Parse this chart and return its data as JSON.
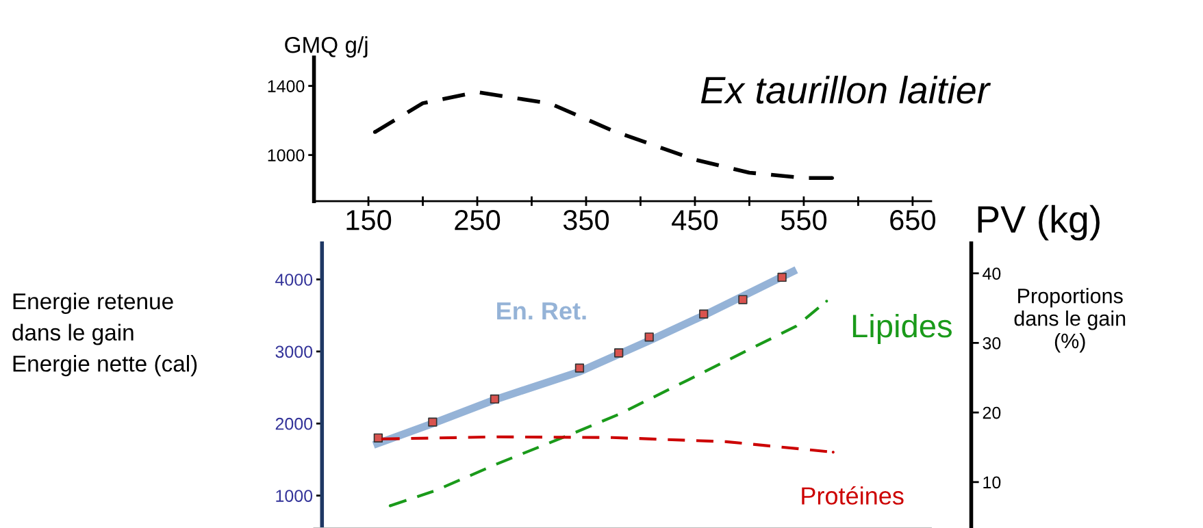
{
  "chart_data": [
    {
      "type": "line",
      "xlabel": "PV (kg)",
      "ylabel": "GMQ g/j",
      "annotations": [
        "Ex taurillon laitier"
      ],
      "series": [
        {
          "color": "#000000",
          "line_style": "dashed",
          "x": [
            156,
            200,
            250,
            317,
            374,
            450,
            500,
            550,
            576
          ],
          "values": [
            1133,
            1300,
            1364,
            1298,
            1142,
            973,
            898,
            867,
            867
          ]
        }
      ],
      "xlim": [
        100,
        667
      ],
      "xticks": [
        150,
        {
          "value": 200,
          "label": null
        },
        250,
        {
          "value": 300,
          "label": null
        },
        350,
        {
          "value": 400,
          "label": null
        },
        450,
        {
          "value": 500,
          "label": null
        },
        550,
        {
          "value": 600,
          "label": null
        },
        650
      ],
      "ylim": [
        733,
        1564
      ],
      "yticks": [
        1000,
        1400
      ],
      "grid": false,
      "legend": false
    },
    {
      "type": "line",
      "ylabel": "Energie retenue\ndans le gain\nEnergie nette (cal)",
      "y2label": "Proportions\ndans le gain\n(%)",
      "series": [
        {
          "name": "En. Ret.",
          "color": "#95b3d7",
          "x": [
            158,
            209,
            266,
            344,
            408,
            458,
            540
          ],
          "values": [
            1720,
            2000,
            2330,
            2720,
            3150,
            3500,
            4110
          ]
        },
        {
          "type": "scatter",
          "color": "#d9534f",
          "marker": "square",
          "x": [
            159,
            209,
            266,
            344,
            380,
            408,
            458,
            494,
            530
          ],
          "values": [
            1800,
            2020,
            2340,
            2770,
            2980,
            3200,
            3520,
            3720,
            4030
          ]
        },
        {
          "name": "Lipides",
          "color": "#1a9a1a",
          "axis": "y2",
          "line_style": "dashed",
          "x": [
            170,
            212,
            268,
            338,
            381,
            444,
            494,
            543,
            571
          ],
          "values": [
            6.6,
            8.8,
            12.6,
            17.0,
            19.8,
            24.7,
            28.6,
            32.4,
            36.0
          ]
        },
        {
          "name": "Protéines",
          "color": "#cc0000",
          "axis": "y2",
          "line_style": "dashed",
          "x": [
            163,
            268,
            374,
            479,
            577
          ],
          "values": [
            16.2,
            16.5,
            16.4,
            15.8,
            14.3
          ]
        }
      ],
      "xlim": [
        100,
        667
      ],
      "ylim": [
        550,
        4500
      ],
      "yticks": [
        1000,
        2000,
        3000,
        4000
      ],
      "y2lim": [
        3.4,
        44.3
      ],
      "y2ticks": [
        10,
        20,
        30,
        40
      ],
      "tick_labels": "y",
      "grid": false,
      "legend": false
    }
  ]
}
